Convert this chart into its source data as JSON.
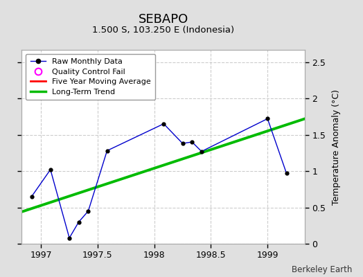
{
  "title": "SEBAPO",
  "subtitle": "1.500 S, 103.250 E (Indonesia)",
  "ylabel": "Temperature Anomaly (°C)",
  "xlabel_credit": "Berkeley Earth",
  "background_color": "#e0e0e0",
  "plot_bg_color": "#ffffff",
  "ylim": [
    0,
    2.667
  ],
  "xlim": [
    1996.83,
    1999.33
  ],
  "yticks": [
    0,
    0.5,
    1.0,
    1.5,
    2.0,
    2.5
  ],
  "xticks": [
    1997,
    1997.5,
    1998,
    1998.5,
    1999
  ],
  "raw_x": [
    1996.917,
    1997.083,
    1997.25,
    1997.333,
    1997.417,
    1997.583,
    1998.083,
    1998.25,
    1998.333,
    1998.417,
    1999.0,
    1999.167
  ],
  "raw_y": [
    0.65,
    1.02,
    0.08,
    0.3,
    0.45,
    1.28,
    1.65,
    1.38,
    1.4,
    1.27,
    1.72,
    0.97
  ],
  "trend_x": [
    1996.83,
    1999.33
  ],
  "trend_y": [
    0.44,
    1.72
  ],
  "raw_color": "#0000cc",
  "raw_marker_color": "#000000",
  "trend_color": "#00bb00",
  "mavg_color": "red"
}
